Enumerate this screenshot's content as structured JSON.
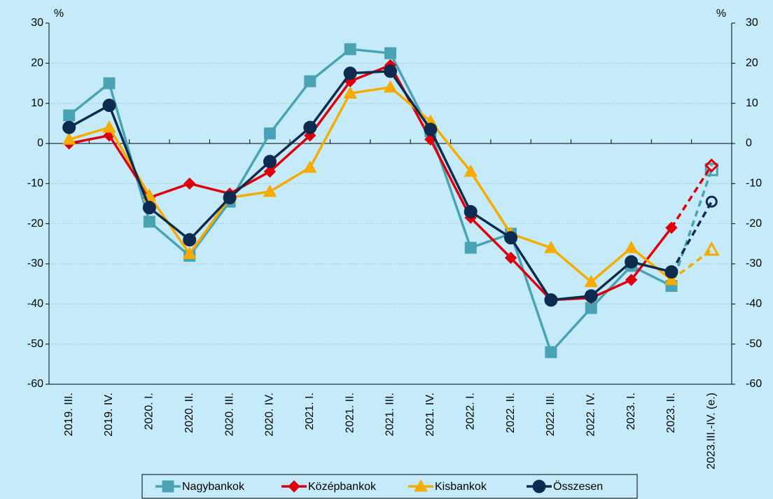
{
  "chart_data": {
    "type": "line",
    "categories": [
      "2019. III.",
      "2019. IV.",
      "2020. I.",
      "2020. II.",
      "2020. III.",
      "2020. IV.",
      "2021. I.",
      "2021. II.",
      "2021. III.",
      "2021. IV.",
      "2022. I.",
      "2022. II.",
      "2022. III.",
      "2022. IV.",
      "2023. I.",
      "2023. II.",
      "2023.III.-IV. (e.)"
    ],
    "series": [
      {
        "name": "Nagybankok",
        "color": "#4aa3b5",
        "marker": "square",
        "values": [
          7,
          15,
          -19.5,
          -28,
          -14.5,
          2.5,
          15.5,
          23.5,
          22.5,
          3,
          -26,
          -22.5,
          -52,
          -41,
          -30.5,
          -35.5,
          -6.5
        ]
      },
      {
        "name": "Középbankok",
        "color": "#e0000b",
        "marker": "diamond",
        "values": [
          0,
          2,
          -13.5,
          -10,
          -12.5,
          -7,
          2,
          15.5,
          19.5,
          1,
          -18.5,
          -28.5,
          -39,
          -38.5,
          -34,
          -21,
          -5.5
        ]
      },
      {
        "name": "Kisbankok",
        "color": "#f5ab00",
        "marker": "triangle",
        "values": [
          1,
          4,
          -13,
          -27.5,
          -13.5,
          -12,
          -6,
          12.5,
          14,
          5.5,
          -7,
          -22.5,
          -26,
          -34.5,
          -26,
          -34,
          -26.5
        ]
      },
      {
        "name": "Összesen",
        "color": "#0d2a4f",
        "marker": "circle",
        "values": [
          4,
          9.5,
          -16,
          -24,
          -13.5,
          -4.5,
          4,
          17.5,
          18,
          3.5,
          -17,
          -23.5,
          -39,
          -38,
          -29.5,
          -32,
          -14.5
        ]
      }
    ],
    "dashed_last_segment": true,
    "ylabel": "%",
    "y2label": "%",
    "ylim": [
      -60,
      30
    ],
    "yticks": [
      -60,
      -50,
      -40,
      -30,
      -20,
      -10,
      0,
      10,
      20,
      30
    ],
    "y2lim": [
      -60,
      30
    ],
    "y2ticks": [
      -60,
      -50,
      -40,
      -30,
      -20,
      -10,
      0,
      10,
      20,
      30
    ],
    "grid": true,
    "legend": "bottom"
  }
}
